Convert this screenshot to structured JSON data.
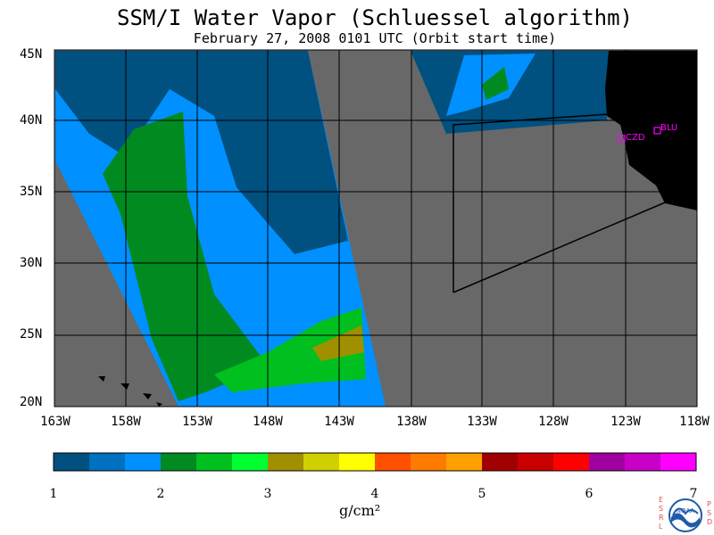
{
  "title": "SSM/I Water Vapor (Schluessel algorithm)",
  "subtitle": "February 27, 2008  0101 UTC  (Orbit start time)",
  "lat_labels": [
    "45N",
    "40N",
    "35N",
    "30N",
    "25N",
    "20N"
  ],
  "lon_labels": [
    "163W",
    "158W",
    "153W",
    "148W",
    "143W",
    "138W",
    "133W",
    "128W",
    "123W",
    "118W"
  ],
  "stations": [
    {
      "label": "CZD",
      "lat": 38.6,
      "lon": -123.2
    },
    {
      "label": "BLU",
      "lat": 39.3,
      "lon": -120.9
    }
  ],
  "colorbar": {
    "ticks": [
      "1",
      "2",
      "3",
      "4",
      "5",
      "6",
      "7"
    ],
    "units": "g/cm²",
    "colors": [
      "#005080",
      "#0070c0",
      "#0090ff",
      "#008a20",
      "#00c020",
      "#00ff30",
      "#a09000",
      "#d0d000",
      "#ffff00",
      "#ff5000",
      "#ff7a00",
      "#ffa000",
      "#a00000",
      "#c80000",
      "#ff0000",
      "#a000a0",
      "#c800c8",
      "#ff00ff"
    ]
  },
  "colors": {
    "land": "#000000",
    "no_data": "#686868",
    "station": "#ff00ff"
  },
  "logo": {
    "letters_left": [
      "E",
      "S",
      "R",
      "L"
    ],
    "letters_right": [
      "P",
      "S",
      "D"
    ],
    "emblem": "NOAA"
  }
}
